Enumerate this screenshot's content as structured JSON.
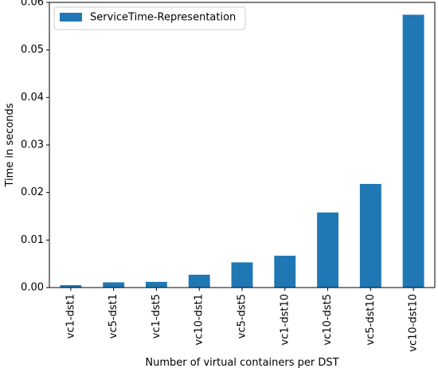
{
  "chart_data": {
    "type": "bar",
    "categories": [
      "vc1-dst1",
      "vc5-dst1",
      "vc1-dst5",
      "vc10-dst1",
      "vc5-dst5",
      "vc1-dst10",
      "vc10-dst5",
      "vc5-dst10",
      "vc10-dst10"
    ],
    "series": [
      {
        "name": "ServiceTime-Representation",
        "values": [
          0.0005,
          0.0011,
          0.0012,
          0.0027,
          0.0053,
          0.0067,
          0.0158,
          0.0218,
          0.0574
        ],
        "color": "#1f77b4"
      }
    ],
    "xlabel": "Number of virtual containers per DST",
    "ylabel": "Time in seconds",
    "ylim": [
      0,
      0.06
    ],
    "yticks": [
      "0.00",
      "0.01",
      "0.02",
      "0.03",
      "0.04",
      "0.05",
      "0.06"
    ],
    "grid": false,
    "legend_position": "top-left"
  }
}
